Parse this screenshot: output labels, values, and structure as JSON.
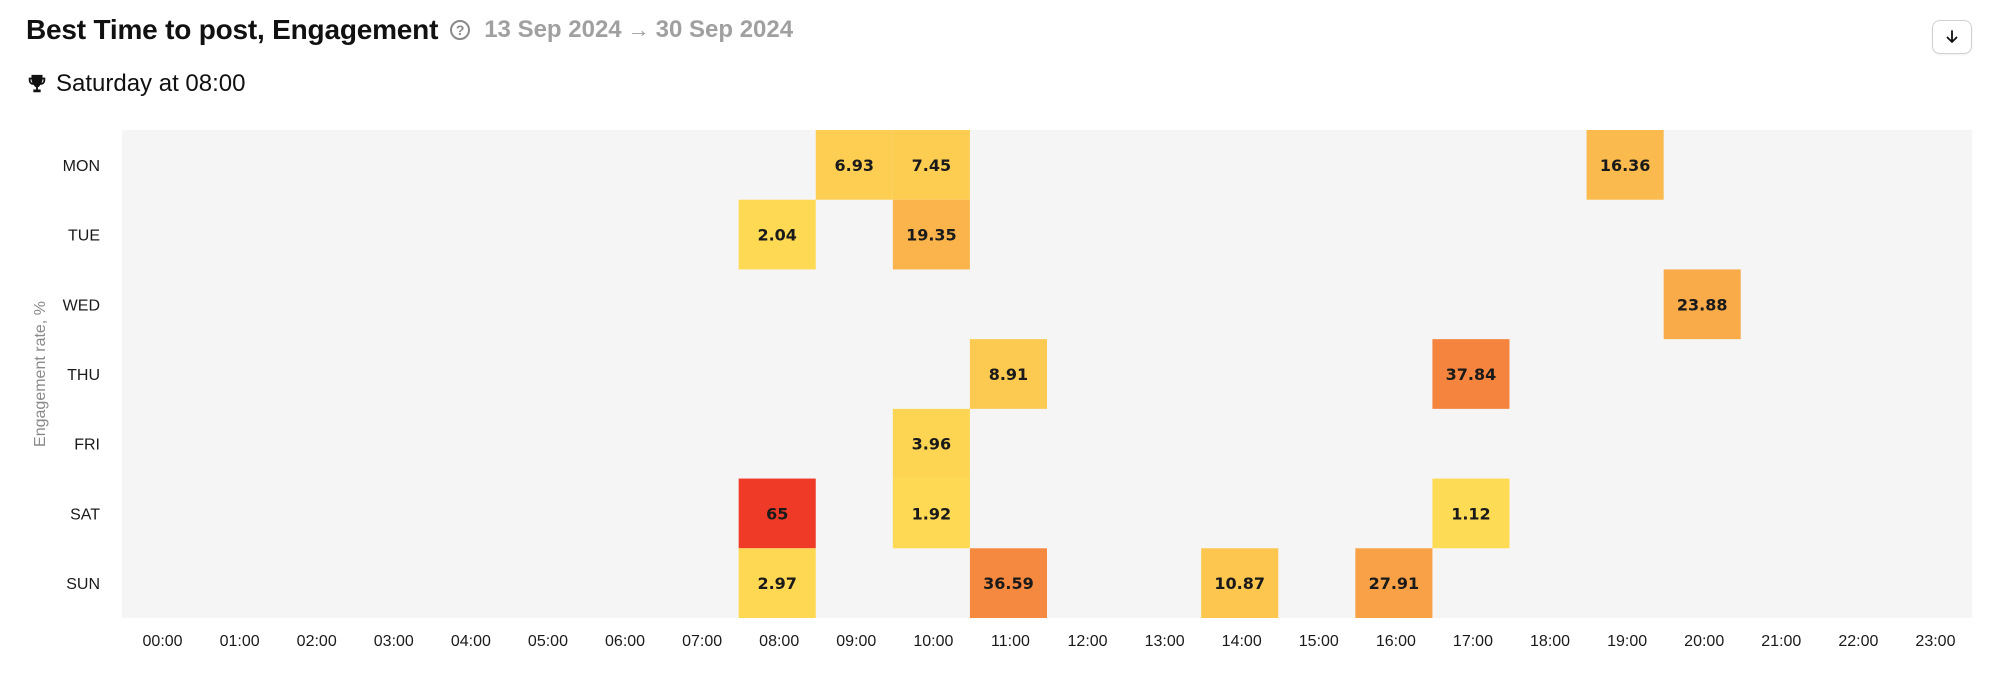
{
  "header": {
    "title": "Best Time to post, Engagement",
    "help_icon": "question-circle-icon",
    "date_start": "13 Sep 2024",
    "date_arrow": "→",
    "date_end": "30 Sep 2024",
    "download_icon": "arrow-down-icon"
  },
  "best_time": {
    "icon": "trophy-icon",
    "label": "Saturday at 08:00"
  },
  "chart_data": {
    "type": "heatmap",
    "title": "Best Time to post, Engagement",
    "ylabel": "Engagement rate, %",
    "xlabel": "",
    "x": [
      "00:00",
      "01:00",
      "02:00",
      "03:00",
      "04:00",
      "05:00",
      "06:00",
      "07:00",
      "08:00",
      "09:00",
      "10:00",
      "11:00",
      "12:00",
      "13:00",
      "14:00",
      "15:00",
      "16:00",
      "17:00",
      "18:00",
      "19:00",
      "20:00",
      "21:00",
      "22:00",
      "23:00"
    ],
    "y": [
      "MON",
      "TUE",
      "WED",
      "THU",
      "FRI",
      "SAT",
      "SUN"
    ],
    "cells": [
      {
        "day": "MON",
        "hour": "09:00",
        "value": 6.93
      },
      {
        "day": "MON",
        "hour": "10:00",
        "value": 7.45
      },
      {
        "day": "MON",
        "hour": "19:00",
        "value": 16.36
      },
      {
        "day": "TUE",
        "hour": "08:00",
        "value": 2.04
      },
      {
        "day": "TUE",
        "hour": "10:00",
        "value": 19.35
      },
      {
        "day": "WED",
        "hour": "20:00",
        "value": 23.88
      },
      {
        "day": "THU",
        "hour": "11:00",
        "value": 8.91
      },
      {
        "day": "THU",
        "hour": "17:00",
        "value": 37.84
      },
      {
        "day": "FRI",
        "hour": "10:00",
        "value": 3.96
      },
      {
        "day": "SAT",
        "hour": "08:00",
        "value": 65
      },
      {
        "day": "SAT",
        "hour": "10:00",
        "value": 1.92
      },
      {
        "day": "SAT",
        "hour": "17:00",
        "value": 1.12
      },
      {
        "day": "SUN",
        "hour": "08:00",
        "value": 2.97
      },
      {
        "day": "SUN",
        "hour": "11:00",
        "value": 36.59
      },
      {
        "day": "SUN",
        "hour": "14:00",
        "value": 10.87
      },
      {
        "day": "SUN",
        "hour": "16:00",
        "value": 27.91
      }
    ],
    "value_range": [
      1.12,
      65
    ],
    "colors": {
      "low": "#fedb54",
      "mid": "#f8a448",
      "high": "#ee3a27",
      "background": "#f5f5f5"
    },
    "grid": false,
    "legend": "none"
  }
}
